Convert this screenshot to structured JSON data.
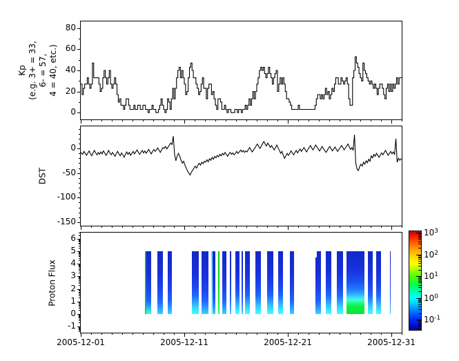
{
  "figure_background": "#ffffff",
  "palette": {
    "axis_color": "#000000",
    "line_color": "#000000",
    "flux_blue_top": "#1228c8",
    "flux_cyan_bottom": "#45ffff",
    "flux_green": "#00dc1e",
    "colorbar_top_red": "#c80000",
    "colorbar_bottom_blue": "#0000a0"
  },
  "x_axis": {
    "range_days": [
      0,
      31
    ],
    "minor_step_days": 1,
    "major": [
      {
        "day": 0,
        "label": "2005-12-01"
      },
      {
        "day": 10,
        "label": "2005-12-11"
      },
      {
        "day": 20,
        "label": "2005-12-21"
      },
      {
        "day": 30,
        "label": "2005-12-31"
      }
    ]
  },
  "chart_data": [
    {
      "type": "line",
      "panel": "kp",
      "style": "step",
      "ylabel_lines": [
        "Kp",
        "(e.g. 3+ = 33,",
        "6- = 57,",
        "4 = 40, etc.)"
      ],
      "ylim": [
        -6.5,
        86.5
      ],
      "yticks": [
        {
          "v": 0,
          "label": "0"
        },
        {
          "v": 20,
          "label": "20"
        },
        {
          "v": 40,
          "label": "40"
        },
        {
          "v": 60,
          "label": "60"
        },
        {
          "v": 80,
          "label": "80"
        }
      ],
      "yminor_step": 10,
      "x_start_day": 0,
      "x_step_days": 0.125,
      "values": [
        27,
        17,
        23,
        27,
        27,
        33,
        27,
        23,
        27,
        47,
        33,
        33,
        33,
        33,
        27,
        20,
        23,
        33,
        40,
        33,
        27,
        33,
        40,
        27,
        23,
        27,
        33,
        27,
        17,
        10,
        13,
        7,
        7,
        3,
        7,
        13,
        13,
        7,
        3,
        3,
        3,
        7,
        3,
        3,
        7,
        7,
        3,
        3,
        7,
        7,
        3,
        3,
        0,
        3,
        3,
        7,
        3,
        3,
        0,
        0,
        3,
        7,
        13,
        7,
        3,
        0,
        3,
        13,
        10,
        3,
        13,
        23,
        13,
        23,
        33,
        40,
        43,
        33,
        40,
        33,
        27,
        17,
        20,
        33,
        43,
        47,
        40,
        33,
        33,
        27,
        23,
        17,
        20,
        27,
        33,
        23,
        23,
        13,
        23,
        27,
        27,
        17,
        20,
        13,
        7,
        3,
        13,
        13,
        10,
        3,
        3,
        7,
        3,
        0,
        3,
        3,
        0,
        0,
        0,
        3,
        3,
        0,
        3,
        3,
        0,
        3,
        3,
        7,
        3,
        7,
        13,
        7,
        13,
        20,
        13,
        20,
        27,
        33,
        40,
        43,
        40,
        43,
        37,
        33,
        37,
        43,
        37,
        33,
        27,
        33,
        37,
        40,
        20,
        27,
        33,
        27,
        33,
        27,
        20,
        13,
        13,
        10,
        7,
        3,
        3,
        3,
        3,
        3,
        7,
        3,
        3,
        3,
        3,
        3,
        3,
        3,
        3,
        3,
        3,
        3,
        3,
        7,
        13,
        17,
        17,
        13,
        17,
        13,
        17,
        23,
        17,
        20,
        13,
        17,
        23,
        20,
        27,
        33,
        33,
        27,
        27,
        33,
        30,
        27,
        30,
        33,
        27,
        13,
        7,
        7,
        33,
        40,
        53,
        47,
        43,
        37,
        33,
        30,
        47,
        40,
        37,
        33,
        30,
        27,
        30,
        27,
        23,
        27,
        23,
        17,
        23,
        27,
        27,
        23,
        17,
        13,
        23,
        27,
        20,
        27,
        20,
        27,
        23,
        27,
        33,
        27,
        33,
        33
      ]
    },
    {
      "type": "line",
      "panel": "dst",
      "style": "linear",
      "ylabel": "DST",
      "ylim": [
        -157,
        45
      ],
      "yticks": [
        {
          "v": 0,
          "label": "0"
        },
        {
          "v": -50,
          "label": "-50"
        },
        {
          "v": -100,
          "label": "-100"
        },
        {
          "v": -150,
          "label": "-150"
        }
      ],
      "yminor_step": 10,
      "x_start_day": 0,
      "x_step_days": 0.125,
      "values": [
        -8,
        -12,
        -6,
        -10,
        -14,
        -9,
        -5,
        -11,
        -15,
        -9,
        -4,
        -9,
        -13,
        -8,
        -12,
        -7,
        -11,
        -5,
        -9,
        -14,
        -10,
        -4,
        -9,
        -13,
        -8,
        -12,
        -16,
        -10,
        -6,
        -11,
        -15,
        -9,
        -13,
        -18,
        -12,
        -7,
        -12,
        -8,
        -14,
        -10,
        -6,
        -11,
        -7,
        -3,
        -8,
        -12,
        -8,
        -4,
        -9,
        -5,
        -10,
        -6,
        -2,
        -7,
        -11,
        -6,
        -2,
        -6,
        -3,
        1,
        -4,
        -8,
        -3,
        2,
        0,
        4,
        -1,
        3,
        7,
        11,
        8,
        25,
        -12,
        -25,
        -15,
        -10,
        -16,
        -24,
        -30,
        -26,
        -34,
        -40,
        -46,
        -50,
        -54,
        -48,
        -44,
        -40,
        -36,
        -40,
        -34,
        -30,
        -34,
        -28,
        -31,
        -26,
        -28,
        -23,
        -27,
        -21,
        -24,
        -18,
        -22,
        -16,
        -19,
        -14,
        -17,
        -12,
        -15,
        -10,
        -13,
        -8,
        -12,
        -16,
        -11,
        -8,
        -12,
        -9,
        -13,
        -10,
        -6,
        -10,
        -7,
        -3,
        -7,
        -4,
        -8,
        -5,
        -7,
        -2,
        2,
        -3,
        -7,
        -3,
        1,
        5,
        9,
        4,
        0,
        5,
        10,
        14,
        9,
        5,
        11,
        7,
        2,
        6,
        1,
        -3,
        2,
        7,
        1,
        -4,
        -10,
        -6,
        -14,
        -20,
        -15,
        -10,
        -14,
        -10,
        -5,
        -9,
        -13,
        -8,
        -4,
        -9,
        -5,
        -1,
        -6,
        -2,
        2,
        -3,
        -7,
        -2,
        2,
        6,
        1,
        -3,
        2,
        7,
        3,
        -1,
        -5,
        -1,
        4,
        0,
        -4,
        -8,
        -4,
        1,
        4,
        -1,
        -5,
        -1,
        3,
        -2,
        -6,
        -2,
        2,
        6,
        2,
        -3,
        1,
        5,
        9,
        3,
        -2,
        2,
        -4,
        28,
        -30,
        -42,
        -45,
        -37,
        -32,
        -36,
        -28,
        -32,
        -25,
        -29,
        -22,
        -26,
        -15,
        -19,
        -12,
        -16,
        -10,
        -14,
        -18,
        -13,
        -9,
        -13,
        -8,
        -4,
        -9,
        -14,
        -10,
        -6,
        -11,
        -7,
        -12,
        20,
        -28,
        -20,
        -24,
        -21
      ]
    },
    {
      "type": "heatmap",
      "panel": "flux",
      "ylabel": "Proton Flux",
      "ylim": [
        -1.5,
        6.5
      ],
      "yticks": [
        {
          "v": -1,
          "label": "-1"
        },
        {
          "v": 0,
          "label": "0"
        },
        {
          "v": 1,
          "label": "1"
        },
        {
          "v": 2,
          "label": "2"
        },
        {
          "v": 3,
          "label": "3"
        },
        {
          "v": 4,
          "label": "4"
        },
        {
          "v": 5,
          "label": "5"
        },
        {
          "v": 6,
          "label": "6"
        }
      ],
      "yminor": "log-decades",
      "column_value_span": [
        0,
        5
      ],
      "columns": [
        {
          "d0": 6.2,
          "d1": 6.8,
          "kind": "green-edge"
        },
        {
          "d0": 7.4,
          "d1": 7.95,
          "kind": "std"
        },
        {
          "d0": 8.4,
          "d1": 8.8,
          "kind": "std"
        },
        {
          "d0": 10.75,
          "d1": 11.4,
          "kind": "cyanb"
        },
        {
          "d0": 11.65,
          "d1": 12.35,
          "kind": "std"
        },
        {
          "d0": 12.6,
          "d1": 12.72,
          "kind": "cyancol"
        },
        {
          "d0": 12.72,
          "d1": 13.0,
          "kind": "std"
        },
        {
          "d0": 13.27,
          "d1": 13.4,
          "kind": "greencol"
        },
        {
          "d0": 13.65,
          "d1": 14.05,
          "kind": "std"
        },
        {
          "d0": 14.4,
          "d1": 14.55,
          "kind": "std"
        },
        {
          "d0": 14.9,
          "d1": 15.3,
          "kind": "cyanb"
        },
        {
          "d0": 15.5,
          "d1": 15.65,
          "kind": "std"
        },
        {
          "d0": 15.85,
          "d1": 16.35,
          "kind": "cyanb"
        },
        {
          "d0": 16.85,
          "d1": 17.4,
          "kind": "cyanb"
        },
        {
          "d0": 18.0,
          "d1": 18.6,
          "kind": "cyanb"
        },
        {
          "d0": 19.05,
          "d1": 19.55,
          "kind": "cyanb"
        },
        {
          "d0": 20.2,
          "d1": 20.6,
          "kind": "std"
        },
        {
          "d0": 22.65,
          "d1": 22.8,
          "kind": "std",
          "y_top": 4.5
        },
        {
          "d0": 22.8,
          "d1": 23.2,
          "kind": "std"
        },
        {
          "d0": 23.65,
          "d1": 24.2,
          "kind": "cyanb"
        },
        {
          "d0": 24.7,
          "d1": 25.3,
          "kind": "cyanb"
        },
        {
          "d0": 25.65,
          "d1": 27.4,
          "kind": "blob"
        },
        {
          "d0": 27.7,
          "d1": 28.2,
          "kind": "cyanb"
        },
        {
          "d0": 28.5,
          "d1": 29.0,
          "kind": "cyanb"
        },
        {
          "d0": 29.85,
          "d1": 29.93,
          "kind": "std"
        }
      ],
      "colorbar": {
        "scale": "log",
        "tick_exponents": [
          "3",
          "2",
          "1",
          "0",
          "-1"
        ],
        "tick_base": "10",
        "range_exponents": [
          3,
          -1.55
        ]
      }
    }
  ]
}
